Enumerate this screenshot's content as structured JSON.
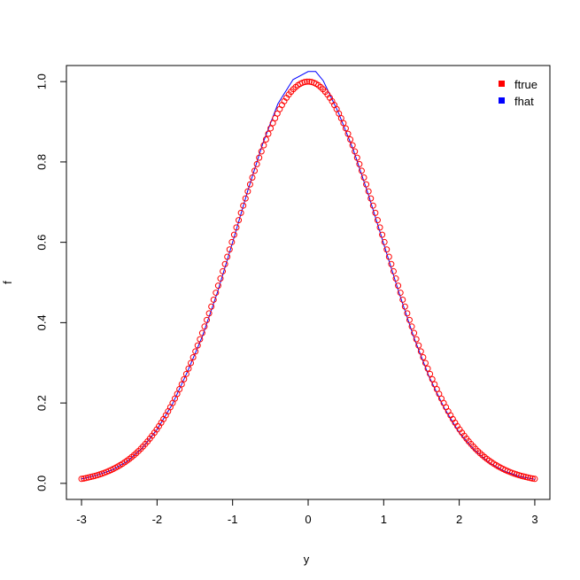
{
  "chart_data": {
    "type": "scatter",
    "title": "",
    "xlabel": "y",
    "ylabel": "f",
    "xlim": [
      -3.2,
      3.2
    ],
    "ylim": [
      -0.04,
      1.04
    ],
    "x_ticks": [
      -3,
      -2,
      -1,
      0,
      1,
      2,
      3
    ],
    "x_tick_labels": [
      "-3",
      "-2",
      "-1",
      "0",
      "1",
      "2",
      "3"
    ],
    "y_ticks": [
      0.0,
      0.2,
      0.4,
      0.6,
      0.8,
      1.0
    ],
    "y_tick_labels": [
      "0.0",
      "0.2",
      "0.4",
      "0.6",
      "0.8",
      "1.0"
    ],
    "grid": false,
    "legend_position": "top-right",
    "series": [
      {
        "name": "ftrue",
        "style": "points",
        "color": "#ff0000",
        "x_range": [
          -3,
          3
        ],
        "n_points": 200,
        "function": "exp(-x^2/2)"
      },
      {
        "name": "fhat",
        "style": "line",
        "color": "#0000ff",
        "x": [
          -3.0,
          -2.8,
          -2.6,
          -2.4,
          -2.2,
          -2.0,
          -1.8,
          -1.6,
          -1.4,
          -1.2,
          -1.0,
          -0.8,
          -0.6,
          -0.4,
          -0.2,
          0.0,
          0.1,
          0.2,
          0.4,
          0.6,
          0.8,
          1.0,
          1.2,
          1.4,
          1.6,
          1.8,
          2.0,
          2.2,
          2.4,
          2.6,
          2.8,
          3.0
        ],
        "y": [
          0.011,
          0.02,
          0.033,
          0.054,
          0.087,
          0.134,
          0.196,
          0.277,
          0.366,
          0.476,
          0.6,
          0.728,
          0.846,
          0.945,
          1.005,
          1.025,
          1.025,
          1.002,
          0.923,
          0.829,
          0.717,
          0.596,
          0.476,
          0.363,
          0.266,
          0.188,
          0.126,
          0.083,
          0.051,
          0.03,
          0.017,
          0.01
        ]
      }
    ]
  }
}
